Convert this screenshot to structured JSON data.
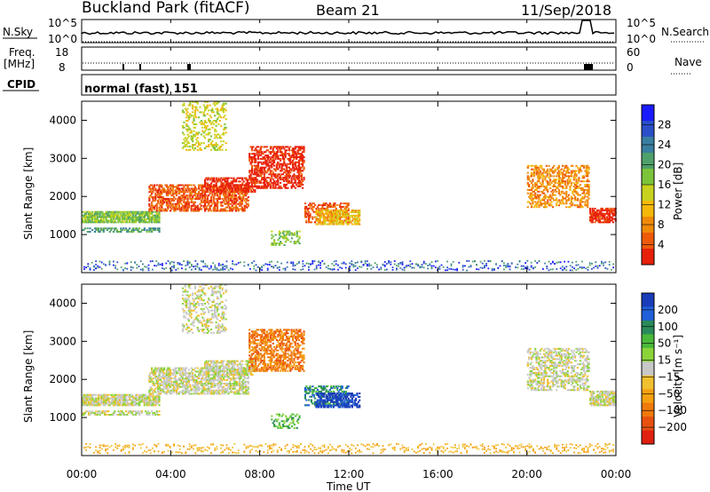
{
  "header": {
    "station": "Buckland Park (fitACF)",
    "beam": "Beam 21",
    "date": "11/Sep/2018"
  },
  "noise_panel": {
    "left_label": "N.Sky",
    "left_ticks": [
      "10^5",
      "10^0"
    ],
    "right_label": "N.Search",
    "right_ticks": [
      "10^5",
      "10^0"
    ]
  },
  "freq_panel": {
    "left_label_1": "Freq.",
    "left_label_2": "[MHz]",
    "left_ticks": [
      "18",
      "8"
    ],
    "right_label": "Nave",
    "right_ticks": [
      "60",
      "0"
    ]
  },
  "cpid_panel": {
    "label": "CPID",
    "mode_text": "normal (fast) 151"
  },
  "power_panel": {
    "ylabel": "Slant Range [km]",
    "yticks": [
      "4000",
      "3000",
      "2000",
      "1000"
    ],
    "colorbar_label": "Power [dB]",
    "colorbar_ticks": [
      "28",
      "24",
      "20",
      "16",
      "12",
      "8",
      "4"
    ],
    "colors": [
      "#1a1aff",
      "#2a4fc8",
      "#3a7fa0",
      "#4fa06a",
      "#7cc43a",
      "#c8d21e",
      "#f5b80a",
      "#f08a0a",
      "#ee5a0a",
      "#e8200a"
    ]
  },
  "velocity_panel": {
    "ylabel": "Slant Range [km]",
    "yticks": [
      "4000",
      "3000",
      "2000",
      "1000"
    ],
    "colorbar_label": "Velocity [m s⁻¹]",
    "colorbar_ticks": [
      "200",
      "100",
      "50",
      "15",
      "−15",
      "−50",
      "−100",
      "−200"
    ],
    "colors": [
      "#1a3cb8",
      "#2060d8",
      "#2a8a5a",
      "#4ab83a",
      "#8ad43a",
      "#c8c8c8",
      "#f0c030",
      "#f5a010",
      "#f07a0a",
      "#e85010",
      "#e02010"
    ]
  },
  "x_axis": {
    "label": "Time UT",
    "ticks": [
      "00:00",
      "04:00",
      "08:00",
      "12:00",
      "16:00",
      "20:00",
      "00:00"
    ]
  }
}
